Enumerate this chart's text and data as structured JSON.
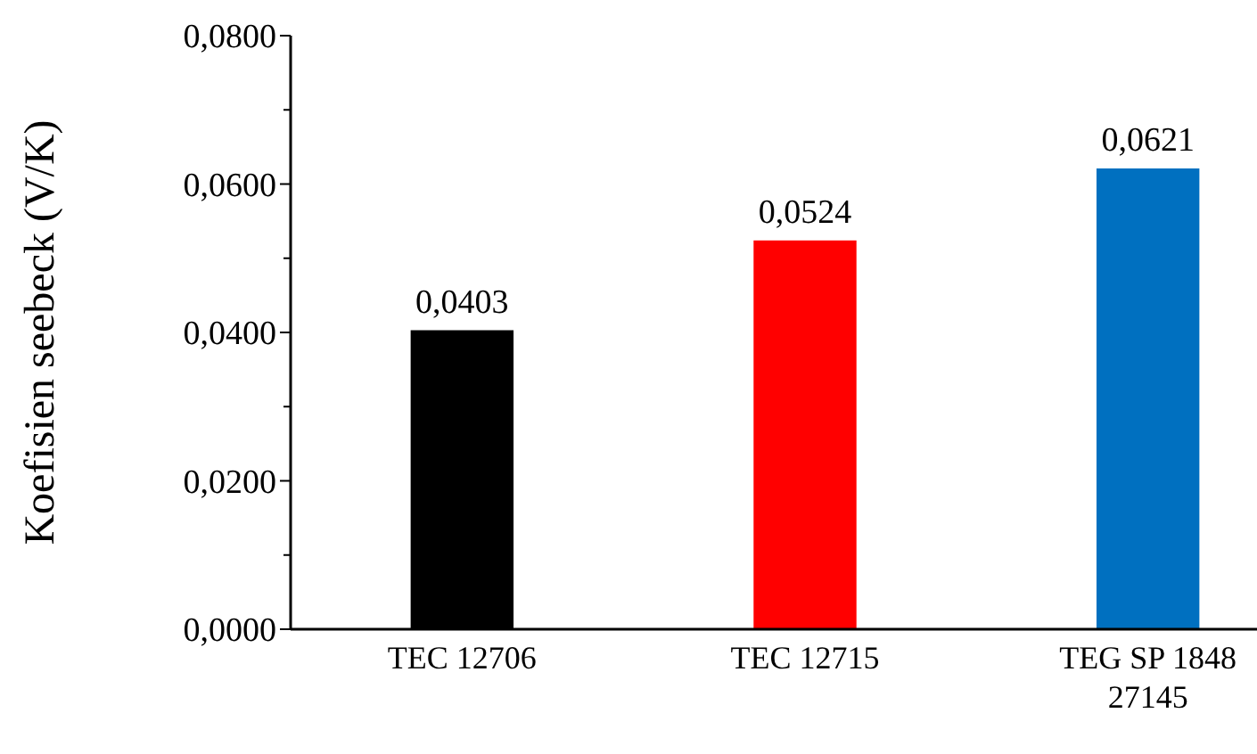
{
  "chart_data": {
    "type": "bar",
    "ylabel": "Koefisien seebeck (V/K)",
    "categories": [
      "TEC 12706",
      "TEC 12715",
      "TEG SP 1848 27145"
    ],
    "values": [
      0.0403,
      0.0524,
      0.0621
    ],
    "colors": [
      "#000000",
      "#ff0000",
      "#0070c0"
    ],
    "value_labels": [
      "0,0403",
      "0,0524",
      "0,0621"
    ],
    "ylim": [
      0,
      0.08
    ],
    "yticks": [
      {
        "value": 0,
        "label": "0,0000"
      },
      {
        "value": 0.01,
        "label": null
      },
      {
        "value": 0.02,
        "label": "0,0200"
      },
      {
        "value": 0.03,
        "label": null
      },
      {
        "value": 0.04,
        "label": "0,0400"
      },
      {
        "value": 0.05,
        "label": null
      },
      {
        "value": 0.06,
        "label": "0,0600"
      },
      {
        "value": 0.07,
        "label": null
      },
      {
        "value": 0.08,
        "label": "0,0800"
      }
    ],
    "grid": false
  }
}
